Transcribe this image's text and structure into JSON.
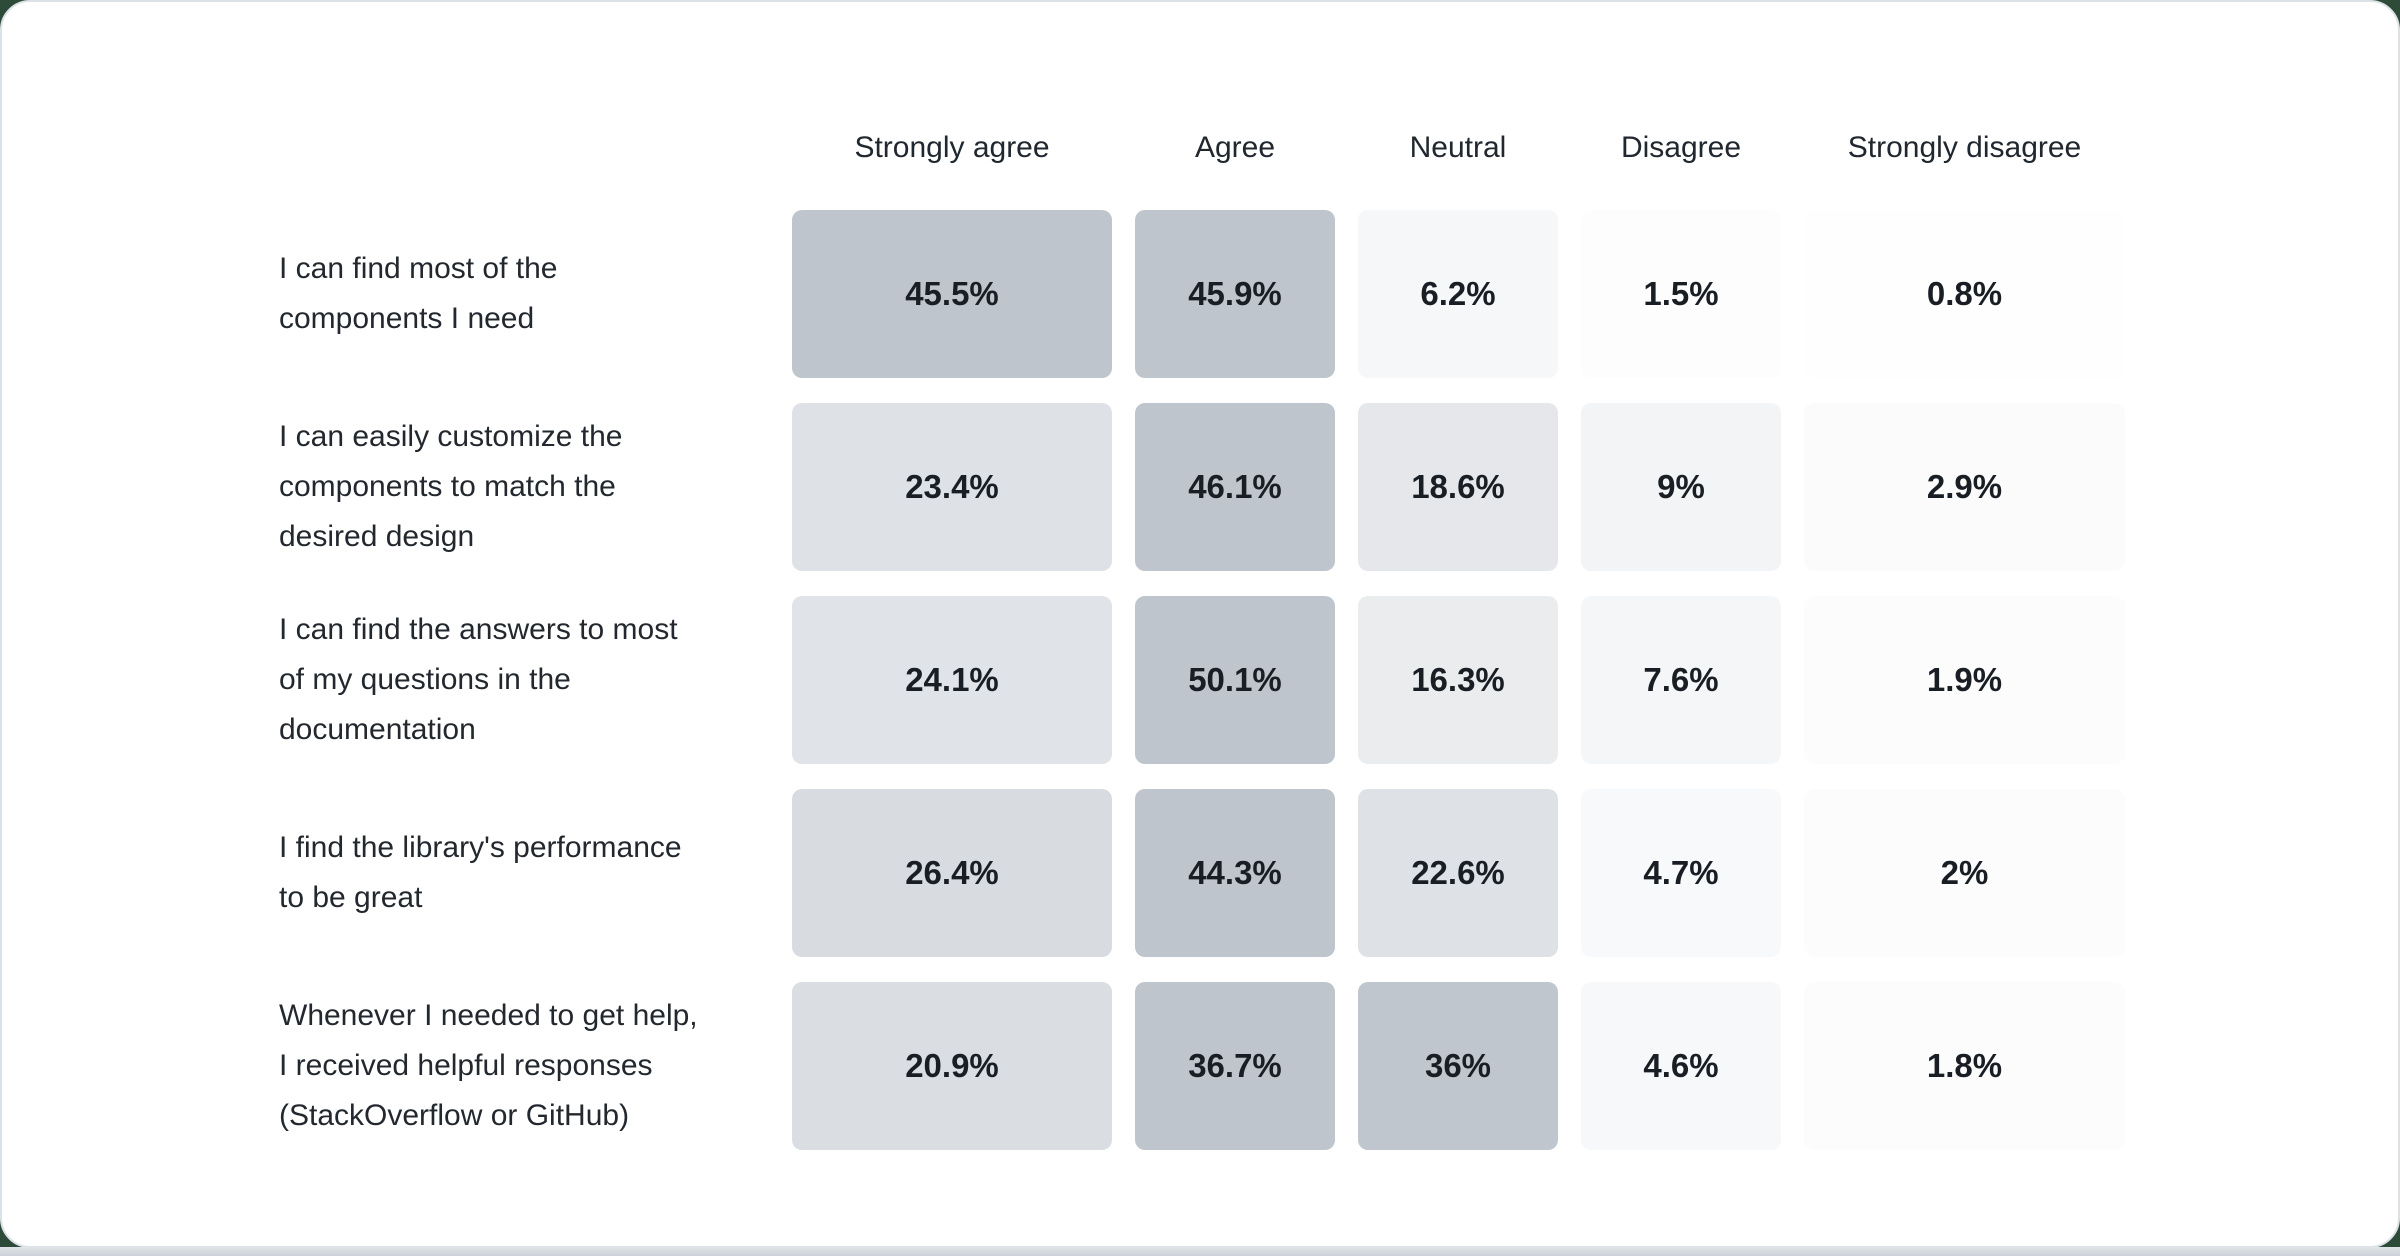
{
  "chart_data": {
    "type": "heatmap",
    "title": "",
    "columns": [
      "Strongly agree",
      "Agree",
      "Neutral",
      "Disagree",
      "Strongly disagree"
    ],
    "rows": [
      {
        "label": "I can find most of the components I need",
        "label_lines": [
          "I can find most of the",
          "components I need"
        ],
        "values": [
          45.5,
          45.9,
          6.2,
          1.5,
          0.8
        ]
      },
      {
        "label": "I can easily customize the components to match the desired design",
        "label_lines": [
          "I can easily customize the",
          "components to match the",
          "desired design"
        ],
        "values": [
          23.4,
          46.1,
          18.6,
          9,
          2.9
        ]
      },
      {
        "label": "I can find the answers to most of my questions in the documentation",
        "label_lines": [
          "I can find the answers to most",
          "of my questions in the",
          "documentation"
        ],
        "values": [
          24.1,
          50.1,
          16.3,
          7.6,
          1.9
        ]
      },
      {
        "label": "I find the library's performance to be great",
        "label_lines": [
          "I find the library's performance",
          "to be great"
        ],
        "values": [
          26.4,
          44.3,
          22.6,
          4.7,
          2
        ]
      },
      {
        "label": "Whenever I needed to get help, I received helpful responses (StackOverflow or GitHub)",
        "label_lines": [
          "Whenever I needed to get help,",
          "I received helpful responses",
          "(StackOverflow or GitHub)"
        ],
        "values": [
          20.9,
          36.7,
          36,
          4.6,
          1.8
        ]
      }
    ],
    "value_suffix": "%",
    "legend_position": "none",
    "grid": false,
    "color_scale": {
      "base_color": "#071f3f",
      "max_alpha": 0.26,
      "normalize": "row-max"
    }
  },
  "colors": {
    "page_background": "#2e4a39",
    "card_background": "#ffffff",
    "card_border": "#dde2e7",
    "bottom_strip": "#d2d8de",
    "header_text": "#21272e",
    "label_text": "#23282e",
    "value_text": "#191e24"
  }
}
